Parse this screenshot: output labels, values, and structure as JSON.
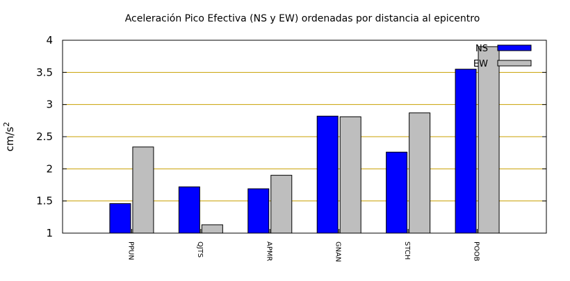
{
  "chart_data": {
    "type": "bar",
    "title": "Aceleración Pico Efectiva (NS y EW) ordenadas por distancia al epicentro",
    "xlabel": "",
    "ylabel": "cm/s",
    "ylabel_sup": "2",
    "categories": [
      "PPUN",
      "QJTS",
      "APMR",
      "GNAN",
      "STCH",
      "POOB"
    ],
    "series": [
      {
        "name": "NS",
        "values": [
          1.46,
          1.72,
          1.69,
          2.82,
          2.26,
          3.55
        ],
        "color": "#0000ff"
      },
      {
        "name": "EW",
        "values": [
          2.34,
          1.13,
          1.9,
          2.81,
          2.87,
          3.9
        ],
        "color": "#bebebe"
      }
    ],
    "ylim": [
      1,
      4
    ],
    "yticks": [
      "1",
      "1.5",
      "2",
      "2.5",
      "3",
      "3.5",
      "4"
    ],
    "grid": true,
    "grid_color": "#c8a000",
    "legend_position": "top-right"
  }
}
